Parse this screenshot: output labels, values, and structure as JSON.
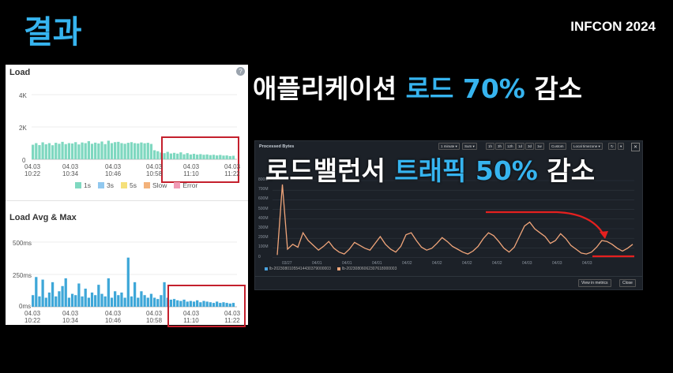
{
  "slide": {
    "title": "결과",
    "brand": "INFCON 2024",
    "headline1": {
      "prefix": "애플리케이션 ",
      "highlight": "로드 70%",
      "suffix": " 감소"
    },
    "headline2": {
      "prefix": "로드밸런서 ",
      "highlight": "트래픽 50%",
      "suffix": " 감소"
    }
  },
  "load_panel": {
    "title": "Load",
    "help_icon": "?",
    "y_ticks": [
      "4K",
      "2K",
      "0"
    ],
    "x_ticks": [
      {
        "d": "04.03",
        "t": "10:22"
      },
      {
        "d": "04.03",
        "t": "10:34"
      },
      {
        "d": "04.03",
        "t": "10:46"
      },
      {
        "d": "04.03",
        "t": "10:58"
      },
      {
        "d": "04.03",
        "t": "11:10"
      },
      {
        "d": "04.03",
        "t": "11:22"
      }
    ],
    "legend": [
      {
        "label": "1s",
        "color": "#7fd8c0"
      },
      {
        "label": "3s",
        "color": "#90c8ef"
      },
      {
        "label": "5s",
        "color": "#f5e07a"
      },
      {
        "label": "Slow",
        "color": "#f3b27a"
      },
      {
        "label": "Error",
        "color": "#f19bb5"
      }
    ]
  },
  "avg_panel": {
    "title": "Load Avg & Max",
    "y_ticks": [
      "500ms",
      "250ms",
      "0ms"
    ],
    "x_ticks": [
      {
        "d": "04.03",
        "t": "10:22"
      },
      {
        "d": "04.03",
        "t": "10:34"
      },
      {
        "d": "04.03",
        "t": "10:46"
      },
      {
        "d": "04.03",
        "t": "10:58"
      },
      {
        "d": "04.03",
        "t": "11:10"
      },
      {
        "d": "04.03",
        "t": "11:22"
      }
    ]
  },
  "dash": {
    "title": "Processed Bytes",
    "controls": [
      "1 minute ▾",
      "Sum ▾",
      "1h",
      "3h",
      "12h",
      "1d",
      "3d",
      "1w",
      "Custom",
      "Local timezone ▾",
      "↻",
      "▾"
    ],
    "close_icon": "✕",
    "y_ticks": [
      "800M",
      "700M",
      "600M",
      "500M",
      "400M",
      "300M",
      "200M",
      "100M",
      "0"
    ],
    "x_ticks": [
      "03/27",
      "04/01",
      "04/01",
      "04/01",
      "04/02",
      "04/02",
      "04/02",
      "04/02",
      "04/03",
      "04/03",
      "04/03"
    ],
    "legend": [
      {
        "label": "lb-20230801055414430379000003",
        "color": "#4aa3df"
      },
      {
        "label": "lb-20230806062307618000003",
        "color": "#f0a57a"
      }
    ],
    "buttons": {
      "view": "View in metrics",
      "close": "Close"
    }
  },
  "chart_data": [
    {
      "type": "area",
      "title": "Load",
      "ylim": [
        0,
        4000
      ],
      "x_ticks": [
        "04.03 10:22",
        "04.03 10:34",
        "04.03 10:46",
        "04.03 10:58",
        "04.03 11:10",
        "04.03 11:22"
      ],
      "series": [
        {
          "name": "1s",
          "values": [
            900,
            1000,
            880,
            1050,
            930,
            1000,
            870,
            1020,
            960,
            1080,
            940,
            1000,
            980,
            1060,
            920,
            1040,
            1000,
            1120,
            960,
            1030,
            980,
            1100,
            940,
            1150,
            1000,
            1060,
            1080,
            1000,
            960,
            1020,
            1060,
            1000,
            980,
            1040,
            990,
            1020,
            950,
            560,
            500,
            420,
            380,
            460,
            360,
            400,
            350,
            430,
            310,
            380,
            300,
            340,
            290,
            320,
            280,
            300,
            260,
            280,
            240,
            270,
            230,
            240,
            200,
            220
          ]
        }
      ]
    },
    {
      "type": "bar",
      "title": "Load Avg & Max",
      "ylim": [
        0,
        500
      ],
      "x_ticks": [
        "04.03 10:22",
        "04.03 10:34",
        "04.03 10:46",
        "04.03 10:58",
        "04.03 11:10",
        "04.03 11:22"
      ],
      "series": [
        {
          "values": [
            90,
            230,
            80,
            210,
            70,
            110,
            190,
            80,
            120,
            160,
            220,
            70,
            100,
            90,
            180,
            80,
            140,
            70,
            110,
            90,
            170,
            100,
            80,
            220,
            70,
            120,
            90,
            110,
            70,
            380,
            80,
            190,
            70,
            120,
            90,
            70,
            100,
            70,
            60,
            90,
            190,
            70,
            55,
            60,
            50,
            45,
            55,
            40,
            45,
            40,
            50,
            35,
            45,
            40,
            35,
            30,
            40,
            30,
            35,
            30,
            25,
            30
          ]
        }
      ]
    },
    {
      "type": "line",
      "title": "Processed Bytes",
      "ylim": [
        0,
        800
      ],
      "x_ticks": [
        "03/27",
        "04/01",
        "04/01",
        "04/01",
        "04/02",
        "04/02",
        "04/02",
        "04/02",
        "04/03",
        "04/03",
        "04/03"
      ],
      "series": [
        {
          "name": "lb-20230806062307618000003",
          "values": [
            30,
            760,
            90,
            140,
            110,
            260,
            180,
            130,
            80,
            120,
            170,
            100,
            60,
            40,
            90,
            160,
            130,
            100,
            80,
            150,
            220,
            140,
            90,
            60,
            120,
            240,
            260,
            180,
            110,
            80,
            100,
            150,
            210,
            170,
            120,
            90,
            60,
            40,
            70,
            120,
            200,
            260,
            230,
            170,
            100,
            60,
            110,
            220,
            330,
            370,
            300,
            260,
            220,
            150,
            180,
            250,
            200,
            130,
            90,
            50,
            40,
            60,
            110,
            180,
            170,
            140,
            100,
            70,
            100,
            140
          ]
        }
      ]
    }
  ]
}
